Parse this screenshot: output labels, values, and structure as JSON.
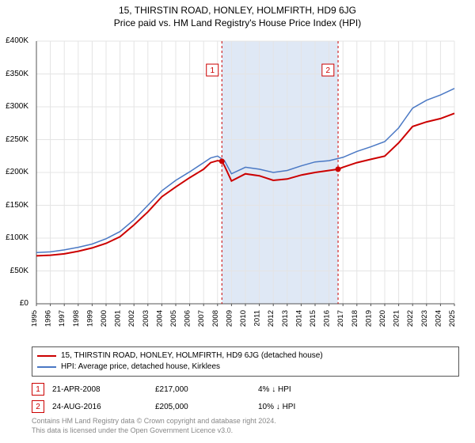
{
  "title": {
    "main": "15, THIRSTIN ROAD, HONLEY, HOLMFIRTH, HD9 6JG",
    "sub": "Price paid vs. HM Land Registry's House Price Index (HPI)"
  },
  "chart": {
    "type": "line",
    "background_color": "#ffffff",
    "grid_color": "#e4e4e4",
    "axis_color": "#555555",
    "band_color": "#dfe8f5",
    "band_start_year": 2008.31,
    "band_end_year": 2016.65,
    "xlim": [
      1995,
      2025
    ],
    "ylim": [
      0,
      400000
    ],
    "ytick_step": 50000,
    "yticks": [
      "£0",
      "£50K",
      "£100K",
      "£150K",
      "£200K",
      "£250K",
      "£300K",
      "£350K",
      "£400K"
    ],
    "xticks": [
      "1995",
      "1996",
      "1997",
      "1998",
      "1999",
      "2000",
      "2001",
      "2002",
      "2003",
      "2004",
      "2005",
      "2006",
      "2007",
      "2008",
      "2009",
      "2010",
      "2011",
      "2012",
      "2013",
      "2014",
      "2015",
      "2016",
      "2017",
      "2018",
      "2019",
      "2020",
      "2021",
      "2022",
      "2023",
      "2024",
      "2025"
    ],
    "label_fontsize": 10,
    "series": [
      {
        "name": "property",
        "label": "15, THIRSTIN ROAD, HONLEY, HOLMFIRTH, HD9 6JG (detached house)",
        "color": "#cc0000",
        "line_width": 2,
        "years": [
          1995,
          1996,
          1997,
          1998,
          1999,
          2000,
          2001,
          2002,
          2003,
          2004,
          2005,
          2006,
          2007,
          2007.5,
          2008,
          2008.31,
          2008.5,
          2009,
          2010,
          2011,
          2012,
          2013,
          2014,
          2015,
          2016,
          2016.65,
          2017,
          2018,
          2019,
          2020,
          2021,
          2022,
          2023,
          2024,
          2025
        ],
        "values": [
          73000,
          74000,
          76000,
          80000,
          85000,
          92000,
          102000,
          120000,
          140000,
          163000,
          178000,
          192000,
          205000,
          215000,
          218000,
          217000,
          210000,
          187000,
          198000,
          195000,
          188000,
          190000,
          196000,
          200000,
          203000,
          205000,
          208000,
          215000,
          220000,
          225000,
          245000,
          270000,
          277000,
          282000,
          290000
        ]
      },
      {
        "name": "hpi",
        "label": "HPI: Average price, detached house, Kirklees",
        "color": "#4a78c4",
        "line_width": 1.5,
        "years": [
          1995,
          1996,
          1997,
          1998,
          1999,
          2000,
          2001,
          2002,
          2003,
          2004,
          2005,
          2006,
          2007,
          2007.5,
          2008,
          2008.5,
          2009,
          2010,
          2011,
          2012,
          2013,
          2014,
          2015,
          2016,
          2017,
          2018,
          2019,
          2020,
          2021,
          2022,
          2023,
          2024,
          2025
        ],
        "values": [
          78000,
          79000,
          82000,
          86000,
          91000,
          99000,
          110000,
          128000,
          150000,
          172000,
          188000,
          201000,
          215000,
          222000,
          225000,
          218000,
          198000,
          208000,
          205000,
          200000,
          203000,
          210000,
          216000,
          218000,
          223000,
          232000,
          239000,
          247000,
          268000,
          298000,
          310000,
          318000,
          328000
        ]
      }
    ],
    "vlines": [
      {
        "year": 2008.31,
        "color": "#cc0000",
        "dash": "3,3"
      },
      {
        "year": 2016.65,
        "color": "#cc0000",
        "dash": "3,3"
      }
    ],
    "markers": [
      {
        "label": "1",
        "year": 2008.31,
        "value": 217000,
        "box_year": 2007.2,
        "box_y": 365000
      },
      {
        "label": "2",
        "year": 2016.65,
        "value": 205000,
        "box_year": 2015.5,
        "box_y": 365000
      }
    ],
    "marker_box_border": "#cc0000",
    "marker_box_text": "#cc0000",
    "marker_dot_color": "#cc0000"
  },
  "legend": {
    "series1": {
      "color": "#cc0000",
      "label": "15, THIRSTIN ROAD, HONLEY, HOLMFIRTH, HD9 6JG (detached house)"
    },
    "series2": {
      "color": "#4a78c4",
      "label": "HPI: Average price, detached house, Kirklees"
    }
  },
  "sales": [
    {
      "marker": "1",
      "date": "21-APR-2008",
      "price": "£217,000",
      "delta": "4% ↓ HPI"
    },
    {
      "marker": "2",
      "date": "24-AUG-2016",
      "price": "£205,000",
      "delta": "10% ↓ HPI"
    }
  ],
  "footer": {
    "line1": "Contains HM Land Registry data © Crown copyright and database right 2024.",
    "line2": "This data is licensed under the Open Government Licence v3.0."
  }
}
